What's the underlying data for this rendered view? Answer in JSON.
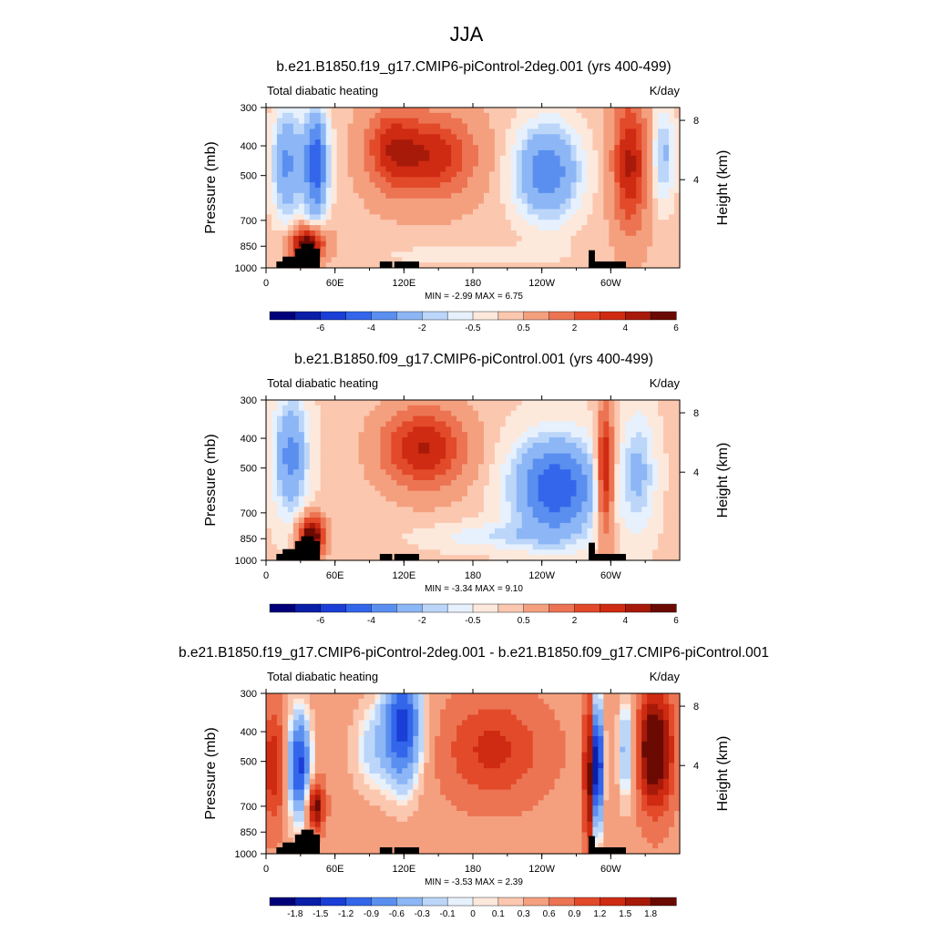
{
  "page_title": "JJA",
  "palettes": {
    "full": [
      "#00007a",
      "#0a1fa8",
      "#1a3ed6",
      "#3366ea",
      "#5a8ff0",
      "#8cb6f5",
      "#bcd6fa",
      "#e6f1fd",
      "#fde8dc",
      "#fbc7af",
      "#f4a07f",
      "#ec7452",
      "#e24a2a",
      "#cf2a12",
      "#a71a0a",
      "#6b0a02"
    ],
    "levels_abs": [
      "-6",
      "-4",
      "-2",
      "-0.5",
      "0.5",
      "2",
      "4",
      "6"
    ],
    "levels_diff": [
      "-1.8",
      "-1.5",
      "-1.2",
      "-0.9",
      "-0.6",
      "-0.3",
      "-0.1",
      "0",
      "0.1",
      "0.3",
      "0.6",
      "0.9",
      "1.2",
      "1.5",
      "1.8"
    ]
  },
  "chart_data": [
    {
      "type": "heatmap",
      "title": "b.e21.B1850.f19_g17.CMIP6-piControl-2deg.001 (yrs 400-499)",
      "left_label": "Total diabatic heating",
      "units": "K/day",
      "ylabel": "Pressure (mb)",
      "y2label": "Height (km)",
      "yticks": [
        "300",
        "400",
        "500",
        "700",
        "850",
        "1000"
      ],
      "y2ticks": [
        "8",
        "4"
      ],
      "xticks": [
        "0",
        "60E",
        "120E",
        "180",
        "120W",
        "60W"
      ],
      "minmax": "MIN =  -2.99  MAX =   6.75",
      "min": -2.99,
      "max": 6.75,
      "colorbar_labels": [
        "-6",
        "-4",
        "-2",
        "-0.5",
        "0.5",
        "2",
        "4",
        "6"
      ]
    },
    {
      "type": "heatmap",
      "title": "b.e21.B1850.f09_g17.CMIP6-piControl.001 (yrs 400-499)",
      "left_label": "Total diabatic heating",
      "units": "K/day",
      "ylabel": "Pressure (mb)",
      "y2label": "Height (km)",
      "yticks": [
        "300",
        "400",
        "500",
        "700",
        "850",
        "1000"
      ],
      "y2ticks": [
        "8",
        "4"
      ],
      "xticks": [
        "0",
        "60E",
        "120E",
        "180",
        "120W",
        "60W"
      ],
      "minmax": "MIN =  -3.34  MAX =   9.10",
      "min": -3.34,
      "max": 9.1,
      "colorbar_labels": [
        "-6",
        "-4",
        "-2",
        "-0.5",
        "0.5",
        "2",
        "4",
        "6"
      ]
    },
    {
      "type": "heatmap",
      "title": "b.e21.B1850.f19_g17.CMIP6-piControl-2deg.001 - b.e21.B1850.f09_g17.CMIP6-piControl.001",
      "left_label": "Total diabatic heating",
      "units": "K/day",
      "ylabel": "Pressure (mb)",
      "y2label": "Height (km)",
      "yticks": [
        "300",
        "400",
        "500",
        "700",
        "850",
        "1000"
      ],
      "y2ticks": [
        "8",
        "4"
      ],
      "xticks": [
        "0",
        "60E",
        "120E",
        "180",
        "120W",
        "60W"
      ],
      "minmax": "MIN =  -3.53  MAX =   2.39",
      "min": -3.53,
      "max": 2.39,
      "colorbar_labels": [
        "-1.8",
        "-1.5",
        "-1.2",
        "-0.9",
        "-0.6",
        "-0.3",
        "-0.1",
        "0",
        "0.1",
        "0.3",
        "0.6",
        "0.9",
        "1.2",
        "1.5",
        "1.8"
      ]
    }
  ]
}
